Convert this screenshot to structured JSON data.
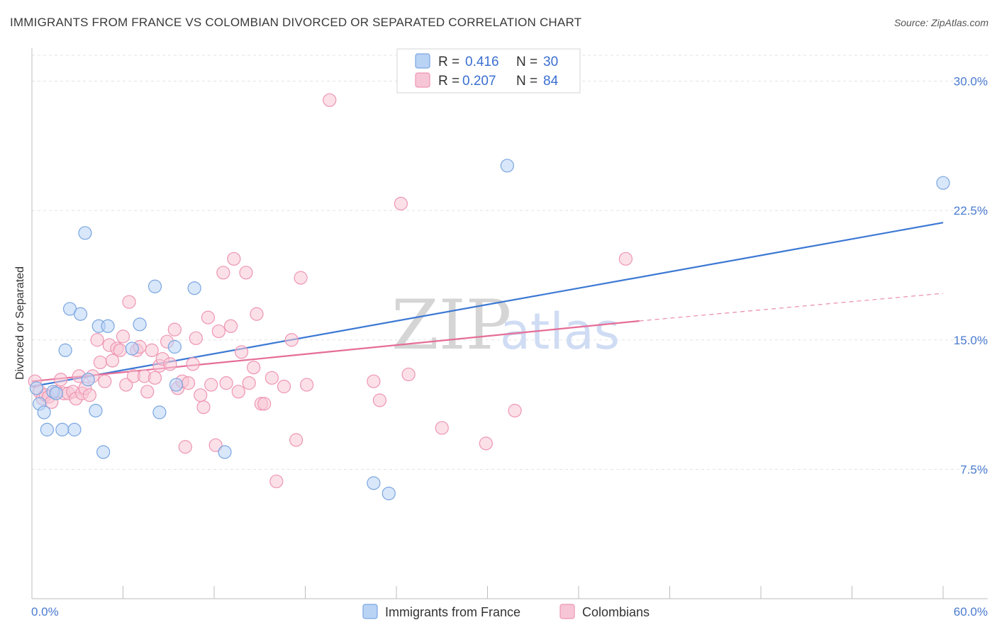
{
  "title": "IMMIGRANTS FROM FRANCE VS COLOMBIAN DIVORCED OR SEPARATED CORRELATION CHART",
  "source": "Source: ZipAtlas.com",
  "watermark": {
    "zip": "ZIP",
    "atlas": "atlas"
  },
  "colors": {
    "blue_fill": "#b9d3f5",
    "blue_stroke": "#7aa6e0",
    "blue_line": "#3b78d4",
    "pink_fill": "#f7c6d6",
    "pink_stroke": "#ee95b3",
    "pink_line": "#e56d98",
    "axis_text": "#4a7bd0",
    "grid": "#e3e3e3"
  },
  "chart_data": {
    "type": "scatter",
    "title": "IMMIGRANTS FROM FRANCE VS COLOMBIAN DIVORCED OR SEPARATED CORRELATION CHART",
    "xlabel": "",
    "ylabel": "Divorced or Separated",
    "xlim": [
      0,
      60
    ],
    "ylim": [
      0,
      31.5
    ],
    "x_tick_labels": [
      "0.0%",
      "60.0%"
    ],
    "y_ticks": [
      7.5,
      15.0,
      22.5,
      30.0
    ],
    "y_tick_labels": [
      "7.5%",
      "15.0%",
      "22.5%",
      "30.0%"
    ],
    "grid": true,
    "legend_position": "top-center",
    "stats": [
      {
        "series": "Immigrants from France",
        "r_label": "R =",
        "r": "0.416",
        "n_label": "N =",
        "n": "30"
      },
      {
        "series": "Colombians",
        "r_label": "R =",
        "r": "0.207",
        "n_label": "N =",
        "n": "84"
      }
    ],
    "series": [
      {
        "name": "Immigrants from France",
        "color": "blue",
        "trend": {
          "x": [
            0,
            60
          ],
          "y": [
            12.3,
            21.8
          ]
        },
        "points": [
          {
            "x": 0.3,
            "y": 12.2
          },
          {
            "x": 0.5,
            "y": 11.3
          },
          {
            "x": 0.8,
            "y": 10.8
          },
          {
            "x": 1.0,
            "y": 9.8
          },
          {
            "x": 1.4,
            "y": 12.0
          },
          {
            "x": 1.6,
            "y": 11.9
          },
          {
            "x": 2.0,
            "y": 9.8
          },
          {
            "x": 2.2,
            "y": 14.4
          },
          {
            "x": 2.5,
            "y": 16.8
          },
          {
            "x": 2.8,
            "y": 9.8
          },
          {
            "x": 3.2,
            "y": 16.5
          },
          {
            "x": 3.5,
            "y": 21.2
          },
          {
            "x": 3.7,
            "y": 12.7
          },
          {
            "x": 4.2,
            "y": 10.9
          },
          {
            "x": 4.4,
            "y": 15.8
          },
          {
            "x": 4.7,
            "y": 8.5
          },
          {
            "x": 5.0,
            "y": 15.8
          },
          {
            "x": 6.6,
            "y": 14.5
          },
          {
            "x": 7.1,
            "y": 15.9
          },
          {
            "x": 8.1,
            "y": 18.1
          },
          {
            "x": 8.4,
            "y": 10.8
          },
          {
            "x": 9.4,
            "y": 14.6
          },
          {
            "x": 9.5,
            "y": 12.4
          },
          {
            "x": 10.7,
            "y": 18.0
          },
          {
            "x": 12.7,
            "y": 8.5
          },
          {
            "x": 22.5,
            "y": 6.7
          },
          {
            "x": 23.5,
            "y": 6.1
          },
          {
            "x": 31.3,
            "y": 25.1
          },
          {
            "x": 60.0,
            "y": 24.1
          }
        ]
      },
      {
        "name": "Colombians",
        "color": "pink",
        "trend": {
          "x": [
            0,
            40
          ],
          "y": [
            12.6,
            16.1
          ]
        },
        "trend_dashed": {
          "x": [
            40,
            60
          ],
          "y": [
            16.1,
            17.7
          ]
        },
        "points": [
          {
            "x": 0.2,
            "y": 12.6
          },
          {
            "x": 0.5,
            "y": 12.0
          },
          {
            "x": 0.7,
            "y": 11.6
          },
          {
            "x": 0.9,
            "y": 11.8
          },
          {
            "x": 1.1,
            "y": 11.7
          },
          {
            "x": 1.3,
            "y": 11.4
          },
          {
            "x": 1.6,
            "y": 12.0
          },
          {
            "x": 1.9,
            "y": 12.7
          },
          {
            "x": 2.1,
            "y": 11.9
          },
          {
            "x": 2.4,
            "y": 11.9
          },
          {
            "x": 2.7,
            "y": 12.0
          },
          {
            "x": 2.9,
            "y": 11.6
          },
          {
            "x": 3.1,
            "y": 12.9
          },
          {
            "x": 3.3,
            "y": 11.9
          },
          {
            "x": 3.5,
            "y": 12.2
          },
          {
            "x": 3.8,
            "y": 11.8
          },
          {
            "x": 4.0,
            "y": 12.9
          },
          {
            "x": 4.3,
            "y": 15.0
          },
          {
            "x": 4.5,
            "y": 13.7
          },
          {
            "x": 4.8,
            "y": 12.6
          },
          {
            "x": 5.1,
            "y": 14.7
          },
          {
            "x": 5.3,
            "y": 13.8
          },
          {
            "x": 5.6,
            "y": 14.5
          },
          {
            "x": 5.8,
            "y": 14.4
          },
          {
            "x": 6.0,
            "y": 15.2
          },
          {
            "x": 6.2,
            "y": 12.4
          },
          {
            "x": 6.4,
            "y": 17.2
          },
          {
            "x": 6.7,
            "y": 12.9
          },
          {
            "x": 6.9,
            "y": 14.4
          },
          {
            "x": 7.1,
            "y": 14.6
          },
          {
            "x": 7.4,
            "y": 12.9
          },
          {
            "x": 7.6,
            "y": 12.0
          },
          {
            "x": 7.9,
            "y": 14.4
          },
          {
            "x": 8.1,
            "y": 12.8
          },
          {
            "x": 8.4,
            "y": 13.5
          },
          {
            "x": 8.6,
            "y": 13.9
          },
          {
            "x": 8.9,
            "y": 14.9
          },
          {
            "x": 9.1,
            "y": 13.6
          },
          {
            "x": 9.4,
            "y": 15.6
          },
          {
            "x": 9.6,
            "y": 12.2
          },
          {
            "x": 9.9,
            "y": 12.6
          },
          {
            "x": 10.1,
            "y": 8.8
          },
          {
            "x": 10.3,
            "y": 12.5
          },
          {
            "x": 10.6,
            "y": 13.6
          },
          {
            "x": 10.8,
            "y": 15.1
          },
          {
            "x": 11.1,
            "y": 11.8
          },
          {
            "x": 11.3,
            "y": 11.1
          },
          {
            "x": 11.6,
            "y": 16.3
          },
          {
            "x": 11.8,
            "y": 12.4
          },
          {
            "x": 12.1,
            "y": 8.9
          },
          {
            "x": 12.3,
            "y": 15.5
          },
          {
            "x": 12.6,
            "y": 18.9
          },
          {
            "x": 12.8,
            "y": 12.5
          },
          {
            "x": 13.1,
            "y": 15.8
          },
          {
            "x": 13.3,
            "y": 19.7
          },
          {
            "x": 13.6,
            "y": 12.0
          },
          {
            "x": 13.8,
            "y": 14.3
          },
          {
            "x": 14.1,
            "y": 18.9
          },
          {
            "x": 14.3,
            "y": 12.5
          },
          {
            "x": 14.6,
            "y": 13.4
          },
          {
            "x": 14.8,
            "y": 16.5
          },
          {
            "x": 15.1,
            "y": 11.3
          },
          {
            "x": 15.3,
            "y": 11.3
          },
          {
            "x": 15.8,
            "y": 12.8
          },
          {
            "x": 16.1,
            "y": 6.8
          },
          {
            "x": 16.6,
            "y": 12.3
          },
          {
            "x": 17.1,
            "y": 15.0
          },
          {
            "x": 17.4,
            "y": 9.2
          },
          {
            "x": 17.7,
            "y": 18.6
          },
          {
            "x": 18.1,
            "y": 12.4
          },
          {
            "x": 19.6,
            "y": 28.9
          },
          {
            "x": 22.5,
            "y": 12.6
          },
          {
            "x": 22.9,
            "y": 11.5
          },
          {
            "x": 24.3,
            "y": 22.9
          },
          {
            "x": 24.8,
            "y": 13.0
          },
          {
            "x": 27.0,
            "y": 9.9
          },
          {
            "x": 29.9,
            "y": 9.0
          },
          {
            "x": 31.8,
            "y": 10.9
          },
          {
            "x": 39.1,
            "y": 19.7
          }
        ]
      }
    ]
  },
  "legend": {
    "items": [
      {
        "label": "Immigrants from France"
      },
      {
        "label": "Colombians"
      }
    ]
  }
}
